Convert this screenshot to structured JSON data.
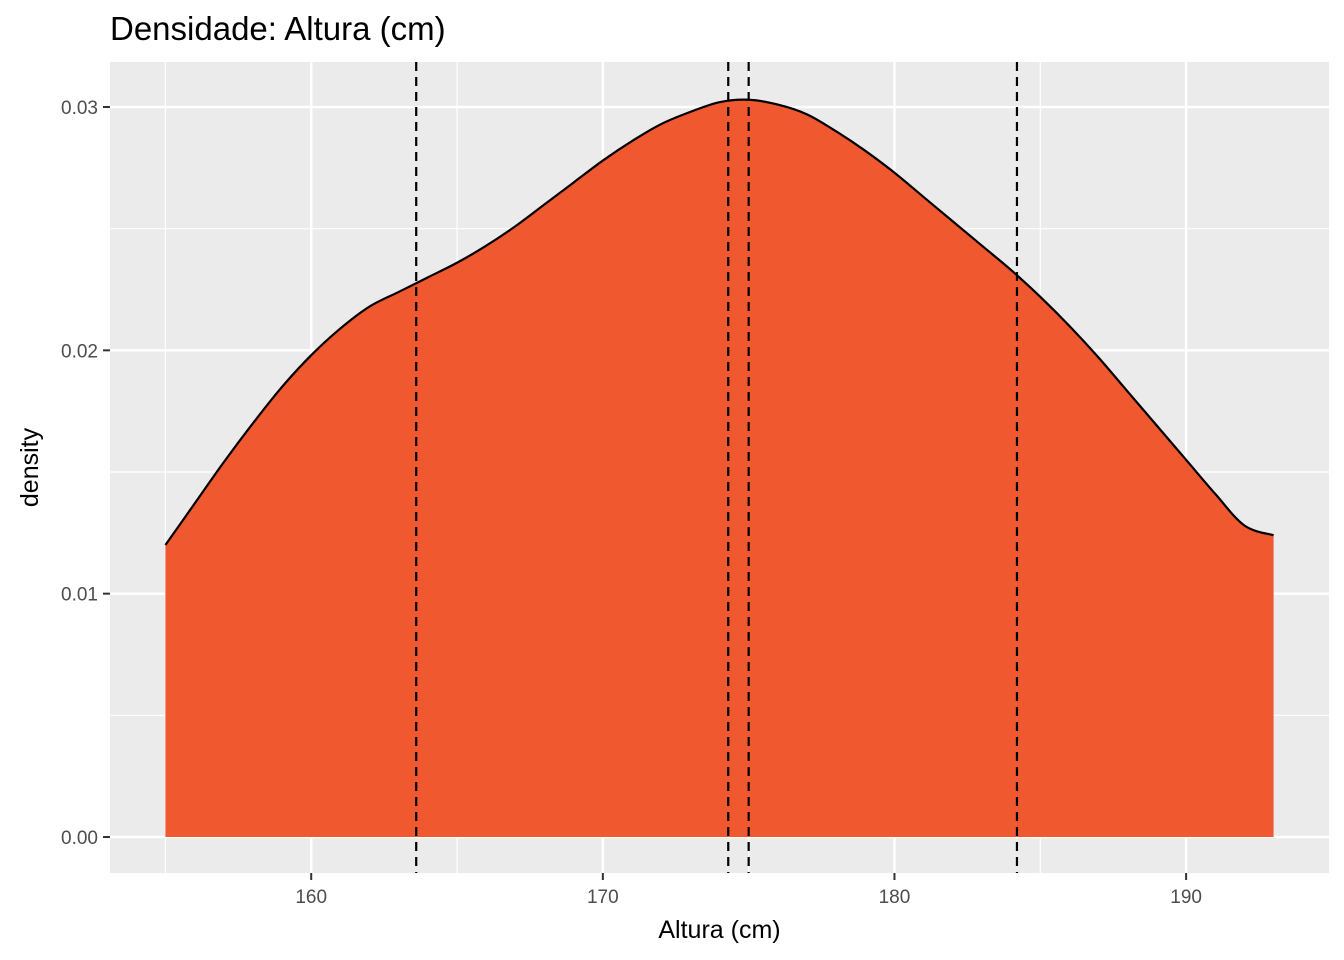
{
  "chart_data": {
    "type": "area",
    "title": "Densidade: Altura (cm)",
    "xlabel": "Altura (cm)",
    "ylabel": "density",
    "xlim": [
      153.1,
      194.9
    ],
    "ylim": [
      -0.00148,
      0.03185
    ],
    "x_ticks": [
      160,
      170,
      180,
      190
    ],
    "x_tick_labels": [
      "160",
      "170",
      "180",
      "190"
    ],
    "x_minor_ticks": [
      155,
      165,
      175,
      185
    ],
    "y_ticks": [
      0.0,
      0.01,
      0.02,
      0.03
    ],
    "y_tick_labels": [
      "0.00",
      "0.01",
      "0.02",
      "0.03"
    ],
    "y_minor_ticks": [
      0.005,
      0.015,
      0.025
    ],
    "grid": true,
    "background": "#ebebeb",
    "fill_color": "#f0582f",
    "line_color": "#000000",
    "series": [
      {
        "x": [
          155,
          156,
          157,
          158,
          159,
          160,
          161,
          162,
          163,
          164,
          165,
          166,
          167,
          168,
          169,
          170,
          171,
          172,
          173,
          174,
          175,
          176,
          177,
          178,
          179,
          180,
          181,
          182,
          183,
          184,
          185,
          186,
          187,
          188,
          189,
          190,
          191,
          192,
          193
        ],
        "y": [
          0.012,
          0.0137,
          0.0154,
          0.017,
          0.0185,
          0.0198,
          0.0209,
          0.0218,
          0.0224,
          0.023,
          0.0236,
          0.0243,
          0.0251,
          0.026,
          0.0269,
          0.0278,
          0.0286,
          0.0293,
          0.0298,
          0.0302,
          0.0303,
          0.0301,
          0.0297,
          0.029,
          0.0282,
          0.0273,
          0.0263,
          0.0253,
          0.0243,
          0.0233,
          0.0222,
          0.021,
          0.0197,
          0.0183,
          0.0169,
          0.0155,
          0.0141,
          0.0128,
          0.0124
        ]
      }
    ],
    "vlines": [
      163.6,
      174.3,
      175.0,
      184.2
    ],
    "vline_style": "dashed"
  }
}
